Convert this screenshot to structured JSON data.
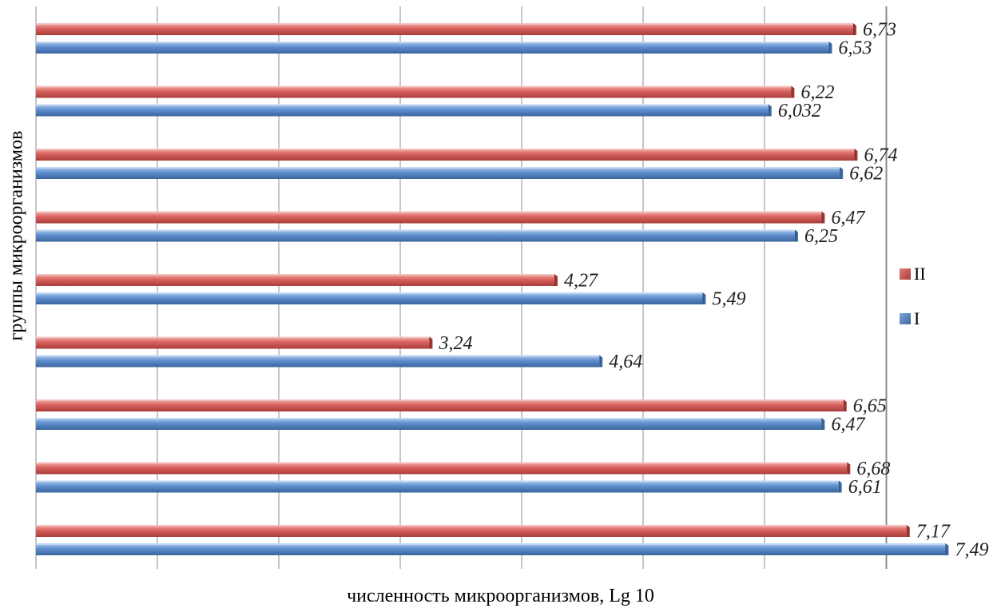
{
  "chart_data": {
    "type": "bar",
    "orientation": "horizontal",
    "title": "",
    "xlabel": "численность микроорганизмов, Lg 10",
    "ylabel": "группы микроорганизмов",
    "xlim": [
      0,
      7.5
    ],
    "x_grid_step": 1,
    "grid": true,
    "legend": "right",
    "categories": [
      "",
      "",
      "",
      "",
      "",
      "",
      "",
      "",
      ""
    ],
    "series": [
      {
        "name": "II",
        "color": "#c0504d",
        "values": [
          6.73,
          6.22,
          6.74,
          6.47,
          4.27,
          3.24,
          6.65,
          6.68,
          7.17
        ],
        "labels": [
          "6,73",
          "6,22",
          "6,74",
          "6,47",
          "4,27",
          "3,24",
          "6,65",
          "6,68",
          "7,17"
        ]
      },
      {
        "name": "I",
        "color": "#4f81bd",
        "values": [
          6.53,
          6.032,
          6.62,
          6.25,
          5.49,
          4.64,
          6.47,
          6.61,
          7.49
        ],
        "labels": [
          "6,53",
          "6,032",
          "6,62",
          "6,25",
          "5,49",
          "4,64",
          "6,47",
          "6,61",
          "7,49"
        ]
      }
    ]
  }
}
